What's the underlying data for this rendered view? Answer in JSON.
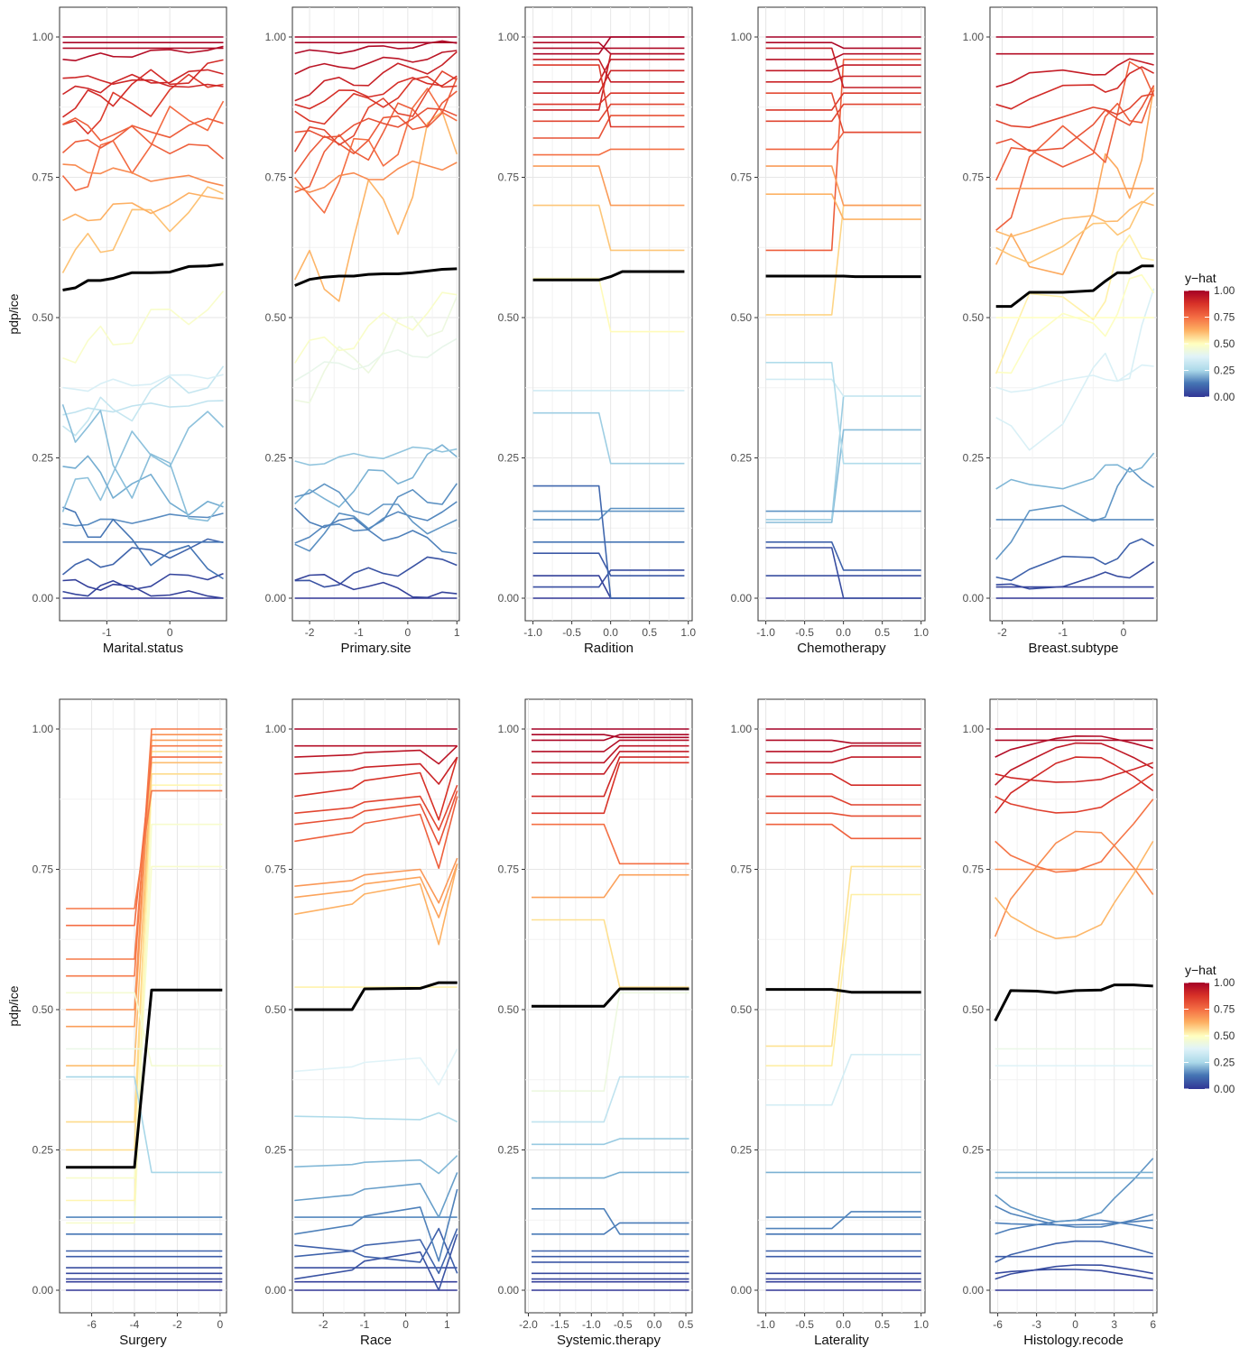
{
  "chart_data": [
    {
      "type": "line",
      "xlabel": "Marital.status",
      "ylabel": "pdp/ice",
      "xlim": [
        -1.75,
        0.9
      ],
      "ylim": [
        0,
        1
      ],
      "x_ticks": [
        -1,
        0
      ],
      "y_ticks": [
        0,
        0.25,
        0.5,
        0.75,
        1
      ],
      "y_tick_labels": [
        "0.00",
        "0.25",
        "0.50",
        "0.75",
        "1.00"
      ],
      "x": [
        -1.7,
        -1.5,
        -1.3,
        -1.1,
        -0.9,
        -0.6,
        -0.3,
        0.0,
        0.3,
        0.6,
        0.85
      ],
      "pdp": [
        0.549,
        0.553,
        0.566,
        0.566,
        0.57,
        0.58,
        0.58,
        0.581,
        0.591,
        0.592,
        0.595
      ],
      "ice_start": [
        0.0,
        0.005,
        0.03,
        0.05,
        0.1,
        0.13,
        0.15,
        0.17,
        0.25,
        0.3,
        0.33,
        0.34,
        0.37,
        0.43,
        0.6,
        0.67,
        0.73,
        0.77,
        0.8,
        0.83,
        0.85,
        0.87,
        0.9,
        0.93,
        0.96,
        0.98,
        0.99,
        1.0
      ],
      "ice_delta": [
        0.0,
        0.04,
        -0.03,
        0.05,
        0.0,
        0.02,
        -0.1,
        0.15,
        -0.1,
        0.1,
        0.02,
        -0.2,
        0.03,
        0.1,
        0.12,
        0.05,
        0.15,
        -0.03,
        0.05,
        0.1,
        -0.06,
        0.08,
        0.04,
        -0.02,
        0.02,
        0.0,
        0.0,
        0.0
      ],
      "ice_pattern": "zigzag"
    },
    {
      "type": "line",
      "xlabel": "Primary.site",
      "ylabel": "",
      "xlim": [
        -2.35,
        1.05
      ],
      "ylim": [
        0,
        1
      ],
      "x_ticks": [
        -2,
        -1,
        0,
        1
      ],
      "y_ticks": [
        0,
        0.25,
        0.5,
        0.75,
        1
      ],
      "y_tick_labels": [
        "0.00",
        "0.25",
        "0.50",
        "0.75",
        "1.00"
      ],
      "x": [
        -2.3,
        -2.0,
        -1.7,
        -1.4,
        -1.1,
        -0.8,
        -0.5,
        -0.2,
        0.1,
        0.4,
        0.7,
        1.0
      ],
      "pdp": [
        0.557,
        0.568,
        0.572,
        0.574,
        0.574,
        0.577,
        0.578,
        0.578,
        0.58,
        0.583,
        0.586,
        0.587
      ],
      "ice_start": [
        0.0,
        0.02,
        0.04,
        0.1,
        0.11,
        0.15,
        0.16,
        0.2,
        0.24,
        0.37,
        0.4,
        0.43,
        0.52,
        0.7,
        0.73,
        0.75,
        0.78,
        0.8,
        0.82,
        0.85,
        0.88,
        0.9,
        0.94,
        0.97,
        0.99,
        1.0
      ],
      "ice_delta": [
        0.0,
        0.05,
        -0.04,
        0.1,
        0.05,
        -0.06,
        0.1,
        -0.08,
        0.03,
        0.15,
        0.05,
        0.1,
        0.32,
        0.2,
        0.05,
        0.15,
        0.1,
        0.12,
        0.05,
        0.08,
        0.05,
        0.06,
        0.03,
        0.02,
        0.0,
        0.0
      ],
      "ice_pattern": "wobble"
    },
    {
      "type": "line",
      "xlabel": "Radition",
      "ylabel": "",
      "xlim": [
        -1.1,
        1.05
      ],
      "ylim": [
        0,
        1
      ],
      "x_ticks": [
        -1.0,
        -0.5,
        0.0,
        0.5,
        1.0
      ],
      "x_tick_labels": [
        "-1.0",
        "-0.5",
        "0.0",
        "0.5",
        "1.0"
      ],
      "y_ticks": [
        0,
        0.25,
        0.5,
        0.75,
        1
      ],
      "y_tick_labels": [
        "0.00",
        "0.25",
        "0.50",
        "0.75",
        "1.00"
      ],
      "x": [
        -1.0,
        -0.15,
        0.0,
        0.15,
        0.95
      ],
      "pdp": [
        0.567,
        0.567,
        0.573,
        0.582,
        0.582
      ],
      "ice_start": [
        0.0,
        0.02,
        0.04,
        0.08,
        0.1,
        0.14,
        0.155,
        0.2,
        0.33,
        0.37,
        0.57,
        0.7,
        0.77,
        0.79,
        0.82,
        0.85,
        0.87,
        0.88,
        0.9,
        0.92,
        0.95,
        0.96,
        0.97,
        0.98,
        0.99,
        1.0
      ],
      "ice_end": [
        0.0,
        0.05,
        0.0,
        0.04,
        0.1,
        0.16,
        0.155,
        0.0,
        0.24,
        0.37,
        0.475,
        0.62,
        0.7,
        0.8,
        0.86,
        0.88,
        0.97,
        0.9,
        0.94,
        0.96,
        0.84,
        0.92,
        1.0,
        0.98,
        0.97,
        1.0
      ],
      "ice_pattern": "step"
    },
    {
      "type": "line",
      "xlabel": "Chemotherapy",
      "ylabel": "",
      "xlim": [
        -1.1,
        1.05
      ],
      "ylim": [
        0,
        1
      ],
      "x_ticks": [
        -1.0,
        -0.5,
        0.0,
        0.5,
        1.0
      ],
      "x_tick_labels": [
        "-1.0",
        "-0.5",
        "0.0",
        "0.5",
        "1.0"
      ],
      "y_ticks": [
        0,
        0.25,
        0.5,
        0.75,
        1
      ],
      "y_tick_labels": [
        "0.00",
        "0.25",
        "0.50",
        "0.75",
        "1.00"
      ],
      "x": [
        -1.0,
        -0.15,
        0.0,
        0.15,
        1.0
      ],
      "pdp": [
        0.574,
        0.574,
        0.574,
        0.573,
        0.573
      ],
      "ice_start": [
        0.0,
        0.04,
        0.09,
        0.1,
        0.135,
        0.14,
        0.155,
        0.39,
        0.42,
        0.505,
        0.62,
        0.72,
        0.77,
        0.8,
        0.85,
        0.87,
        0.9,
        0.92,
        0.94,
        0.96,
        0.98,
        0.99,
        1.0
      ],
      "ice_end": [
        0.0,
        0.04,
        0.0,
        0.05,
        0.3,
        0.36,
        0.155,
        0.36,
        0.24,
        0.7,
        0.96,
        0.675,
        0.7,
        0.83,
        0.88,
        0.9,
        0.83,
        0.93,
        0.95,
        0.97,
        0.91,
        0.98,
        1.0
      ],
      "ice_pattern": "step"
    },
    {
      "type": "line",
      "xlabel": "Breast.subtype",
      "ylabel": "",
      "xlim": [
        -2.2,
        0.55
      ],
      "ylim": [
        0,
        1
      ],
      "x_ticks": [
        -2,
        -1,
        0
      ],
      "y_ticks": [
        0,
        0.25,
        0.5,
        0.75,
        1
      ],
      "y_tick_labels": [
        "0.00",
        "0.25",
        "0.50",
        "0.75",
        "1.00"
      ],
      "x": [
        -2.1,
        -1.85,
        -1.55,
        -1.0,
        -0.5,
        -0.3,
        -0.1,
        0.1,
        0.3,
        0.5
      ],
      "pdp": [
        0.52,
        0.52,
        0.545,
        0.545,
        0.548,
        0.565,
        0.58,
        0.58,
        0.592,
        0.592
      ],
      "ice_start": [
        0.0,
        0.015,
        0.02,
        0.04,
        0.1,
        0.14,
        0.19,
        0.265,
        0.37,
        0.42,
        0.45,
        0.5,
        0.55,
        0.6,
        0.65,
        0.7,
        0.73,
        0.75,
        0.79,
        0.84,
        0.88,
        0.92,
        0.97,
        1.0
      ],
      "ice_delta": [
        0.0,
        0.04,
        0.0,
        0.06,
        0.13,
        0.0,
        0.06,
        0.23,
        0.04,
        0.15,
        0.2,
        0.0,
        0.3,
        0.1,
        0.05,
        0.25,
        0.0,
        0.15,
        0.1,
        0.05,
        0.06,
        0.04,
        0.0,
        0.0
      ],
      "ice_pattern": "wobble"
    },
    {
      "type": "line",
      "xlabel": "Surgery",
      "ylabel": "pdp/ice",
      "xlim": [
        -7.5,
        0.3
      ],
      "ylim": [
        0,
        1
      ],
      "x_ticks": [
        -6,
        -4,
        -2,
        0
      ],
      "y_ticks": [
        0,
        0.25,
        0.5,
        0.75,
        1
      ],
      "y_tick_labels": [
        "0.00",
        "0.25",
        "0.50",
        "0.75",
        "1.00"
      ],
      "x": [
        -7.2,
        -4.0,
        -3.2,
        0.1
      ],
      "pdp": [
        0.219,
        0.219,
        0.535,
        0.535
      ],
      "ice_start": [
        0.0,
        0.015,
        0.02,
        0.03,
        0.04,
        0.06,
        0.07,
        0.1,
        0.12,
        0.13,
        0.16,
        0.2,
        0.25,
        0.3,
        0.38,
        0.4,
        0.43,
        0.47,
        0.5,
        0.53,
        0.56,
        0.59,
        0.65,
        0.68
      ],
      "ice_end": [
        0.0,
        0.015,
        0.02,
        0.03,
        0.04,
        0.06,
        0.07,
        0.1,
        0.83,
        0.13,
        0.9,
        0.755,
        0.96,
        0.92,
        0.21,
        0.94,
        0.43,
        0.98,
        0.99,
        0.4,
        1.0,
        0.97,
        0.95,
        0.89
      ],
      "ice_pattern": "step"
    },
    {
      "type": "line",
      "xlabel": "Race",
      "ylabel": "",
      "xlim": [
        -2.75,
        1.3
      ],
      "ylim": [
        0,
        1
      ],
      "x_ticks": [
        -2,
        -1,
        0,
        1
      ],
      "y_ticks": [
        0,
        0.25,
        0.5,
        0.75,
        1
      ],
      "y_tick_labels": [
        "0.00",
        "0.25",
        "0.50",
        "0.75",
        "1.00"
      ],
      "x": [
        -2.7,
        -1.3,
        -1.0,
        0.35,
        0.8,
        1.25
      ],
      "pdp": [
        0.5,
        0.5,
        0.537,
        0.538,
        0.548,
        0.548
      ],
      "ice_start": [
        0.0,
        0.015,
        0.02,
        0.04,
        0.06,
        0.08,
        0.1,
        0.13,
        0.16,
        0.22,
        0.31,
        0.39,
        0.54,
        0.67,
        0.7,
        0.72,
        0.8,
        0.83,
        0.85,
        0.88,
        0.92,
        0.95,
        0.97,
        1.0
      ],
      "ice_delta": [
        0.0,
        0.0,
        0.08,
        0.0,
        0.05,
        -0.05,
        0.08,
        0.0,
        0.05,
        0.02,
        -0.01,
        0.04,
        0.0,
        0.09,
        0.06,
        0.05,
        0.08,
        0.06,
        0.05,
        0.07,
        0.03,
        0.02,
        0.0,
        0.0
      ],
      "ice_pattern": "dip"
    },
    {
      "type": "line",
      "xlabel": "Systemic.therapy",
      "ylabel": "",
      "xlim": [
        -2.05,
        0.6
      ],
      "ylim": [
        0,
        1
      ],
      "x_ticks": [
        -2.0,
        -1.5,
        -1.0,
        -0.5,
        0.0,
        0.5
      ],
      "x_tick_labels": [
        "-2.0",
        "-1.5",
        "-1.0",
        "-0.5",
        "0.0",
        "0.5"
      ],
      "y_ticks": [
        0,
        0.25,
        0.5,
        0.75,
        1
      ],
      "y_tick_labels": [
        "0.00",
        "0.25",
        "0.50",
        "0.75",
        "1.00"
      ],
      "x": [
        -1.95,
        -0.8,
        -0.55,
        0.55
      ],
      "pdp": [
        0.506,
        0.506,
        0.537,
        0.537
      ],
      "ice_start": [
        0.0,
        0.015,
        0.02,
        0.03,
        0.05,
        0.06,
        0.07,
        0.1,
        0.145,
        0.2,
        0.26,
        0.3,
        0.355,
        0.66,
        0.7,
        0.83,
        0.85,
        0.88,
        0.92,
        0.94,
        0.96,
        0.98,
        0.99,
        1.0
      ],
      "ice_end": [
        0.0,
        0.015,
        0.02,
        0.03,
        0.05,
        0.06,
        0.07,
        0.12,
        0.1,
        0.21,
        0.27,
        0.38,
        0.53,
        0.54,
        0.74,
        0.76,
        0.94,
        0.95,
        0.96,
        0.97,
        0.98,
        0.99,
        0.985,
        1.0
      ],
      "ice_pattern": "step"
    },
    {
      "type": "line",
      "xlabel": "Laterality",
      "ylabel": "",
      "xlim": [
        -1.1,
        1.05
      ],
      "ylim": [
        0,
        1
      ],
      "x_ticks": [
        -1.0,
        -0.5,
        0.0,
        0.5,
        1.0
      ],
      "x_tick_labels": [
        "-1.0",
        "-0.5",
        "0.0",
        "0.5",
        "1.0"
      ],
      "y_ticks": [
        0,
        0.25,
        0.5,
        0.75,
        1
      ],
      "y_tick_labels": [
        "0.00",
        "0.25",
        "0.50",
        "0.75",
        "1.00"
      ],
      "x": [
        -1.0,
        -0.15,
        0.1,
        1.0
      ],
      "pdp": [
        0.536,
        0.536,
        0.531,
        0.531
      ],
      "ice_start": [
        0.0,
        0.015,
        0.02,
        0.03,
        0.06,
        0.07,
        0.1,
        0.11,
        0.13,
        0.21,
        0.33,
        0.4,
        0.435,
        0.83,
        0.85,
        0.88,
        0.92,
        0.94,
        0.96,
        0.98,
        1.0
      ],
      "ice_end": [
        0.0,
        0.015,
        0.02,
        0.03,
        0.06,
        0.07,
        0.1,
        0.14,
        0.13,
        0.21,
        0.42,
        0.705,
        0.755,
        0.805,
        0.845,
        0.865,
        0.9,
        0.95,
        0.97,
        0.975,
        1.0
      ],
      "ice_pattern": "step"
    },
    {
      "type": "line",
      "xlabel": "Histology.recode",
      "ylabel": "",
      "xlim": [
        -6.6,
        6.3
      ],
      "ylim": [
        0,
        1
      ],
      "x_ticks": [
        -6,
        -3,
        0,
        3,
        6
      ],
      "y_ticks": [
        0,
        0.25,
        0.5,
        0.75,
        1
      ],
      "y_tick_labels": [
        "0.00",
        "0.25",
        "0.50",
        "0.75",
        "1.00"
      ],
      "x": [
        -6.2,
        -5.0,
        -3.0,
        -1.5,
        0.0,
        2.0,
        3.0,
        4.5,
        6.0
      ],
      "pdp": [
        0.48,
        0.534,
        0.533,
        0.53,
        0.534,
        0.535,
        0.544,
        0.544,
        0.542
      ],
      "ice_start": [
        0.0,
        0.02,
        0.03,
        0.05,
        0.06,
        0.1,
        0.12,
        0.15,
        0.17,
        0.2,
        0.21,
        0.4,
        0.43,
        0.63,
        0.7,
        0.75,
        0.8,
        0.85,
        0.88,
        0.9,
        0.92,
        0.95,
        0.98,
        1.0
      ],
      "ice_delta": [
        0.0,
        0.02,
        -0.02,
        0.03,
        0.0,
        0.02,
        0.01,
        -0.03,
        0.13,
        0.0,
        0.0,
        0.0,
        0.0,
        0.15,
        0.2,
        0.0,
        0.15,
        0.08,
        0.08,
        0.06,
        0.04,
        0.03,
        0.0,
        0.0
      ],
      "ice_pattern": "valley"
    }
  ],
  "legend": {
    "title": "y−hat",
    "labels": [
      "1.00",
      "0.75",
      "0.50",
      "0.25",
      "0.00"
    ],
    "colors": [
      "#a50026",
      "#d73027",
      "#f46d43",
      "#fdae61",
      "#fee090",
      "#ffffbf",
      "#e0f3f8",
      "#abd9e9",
      "#74add1",
      "#4575b4",
      "#313695"
    ]
  },
  "colors": {
    "pdp_line": "#000000",
    "panel_border": "#333333",
    "grid": "#e6e6e6"
  }
}
